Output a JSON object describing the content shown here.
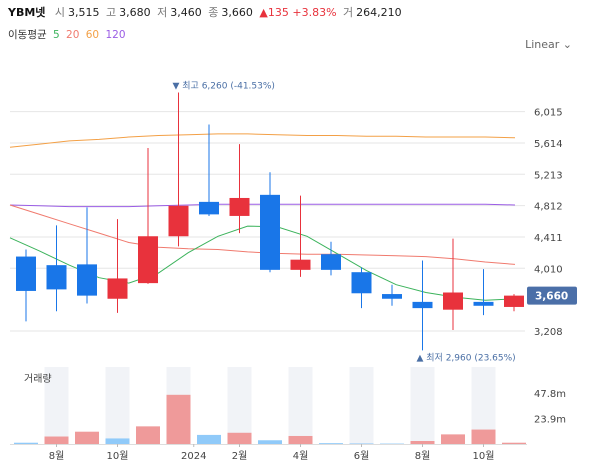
{
  "header": {
    "name": "YBM넷",
    "open_label": "시",
    "open": "3,515",
    "high_label": "고",
    "high": "3,680",
    "low_label": "저",
    "low": "3,460",
    "close_label": "종",
    "close": "3,660",
    "change": "▲135 +3.83%",
    "volume_label": "거",
    "volume": "264,210"
  },
  "ma_legend": {
    "title": "이동평균",
    "items": [
      {
        "label": "5",
        "color": "#3cb35c"
      },
      {
        "label": "20",
        "color": "#f07a6e"
      },
      {
        "label": "60",
        "color": "#f3a046"
      },
      {
        "label": "120",
        "color": "#9b5de5"
      }
    ]
  },
  "scale_label": "Linear",
  "colors": {
    "up": "#e8323c",
    "down": "#1976e8",
    "grid": "#e6e6e6",
    "vol_up": "#ef9a9a",
    "vol_down": "#90caf9"
  },
  "chart_data": {
    "type": "candlestick",
    "price_ticks": [
      "6,015",
      "5,614",
      "5,213",
      "4,812",
      "4,411",
      "4,010",
      "3,208"
    ],
    "price_tick_values": [
      6015,
      5614,
      5213,
      4812,
      4411,
      4010,
      3208
    ],
    "ylim": [
      2900,
      6420
    ],
    "last_price": {
      "label": "3,660",
      "value": 3660
    },
    "max_annotation": {
      "label": "▼ 최고 6,260 (-41.53%)",
      "value": 6260,
      "index": 5
    },
    "min_annotation": {
      "label": "▲ 최저 2,960 (23.65%)",
      "value": 2960,
      "index": 13
    },
    "x_labels": [
      {
        "label": "8월",
        "index": 1
      },
      {
        "label": "10월",
        "index": 3
      },
      {
        "label": "2024",
        "index": 5.5
      },
      {
        "label": "2월",
        "index": 7
      },
      {
        "label": "4월",
        "index": 9
      },
      {
        "label": "6월",
        "index": 11
      },
      {
        "label": "8월",
        "index": 13
      },
      {
        "label": "10월",
        "index": 15
      }
    ],
    "candles": [
      {
        "o": 4160,
        "h": 4250,
        "l": 3330,
        "c": 3720
      },
      {
        "o": 4050,
        "h": 4560,
        "l": 3460,
        "c": 3740
      },
      {
        "o": 4060,
        "h": 4790,
        "l": 3560,
        "c": 3660
      },
      {
        "o": 3620,
        "h": 4640,
        "l": 3440,
        "c": 3880
      },
      {
        "o": 3820,
        "h": 5550,
        "l": 3810,
        "c": 4420
      },
      {
        "o": 4420,
        "h": 6260,
        "l": 4290,
        "c": 4810
      },
      {
        "o": 4860,
        "h": 5850,
        "l": 4680,
        "c": 4700
      },
      {
        "o": 4680,
        "h": 5600,
        "l": 4460,
        "c": 4910
      },
      {
        "o": 4950,
        "h": 5240,
        "l": 3960,
        "c": 3990
      },
      {
        "o": 3990,
        "h": 4940,
        "l": 3900,
        "c": 4120
      },
      {
        "o": 4190,
        "h": 4350,
        "l": 3920,
        "c": 3990
      },
      {
        "o": 3960,
        "h": 4020,
        "l": 3500,
        "c": 3690
      },
      {
        "o": 3680,
        "h": 3800,
        "l": 3530,
        "c": 3620
      },
      {
        "o": 3580,
        "h": 4110,
        "l": 2960,
        "c": 3500
      },
      {
        "o": 3480,
        "h": 4390,
        "l": 3220,
        "c": 3700
      },
      {
        "o": 3580,
        "h": 4000,
        "l": 3410,
        "c": 3530
      },
      {
        "o": 3515,
        "h": 3680,
        "l": 3460,
        "c": 3660
      }
    ],
    "ma5": [
      4400,
      4230,
      4050,
      3890,
      3820,
      3950,
      4210,
      4420,
      4550,
      4540,
      4420,
      4200,
      3980,
      3800,
      3700,
      3640,
      3600,
      3620
    ],
    "ma20": [
      4820,
      4700,
      4580,
      4460,
      4340,
      4280,
      4260,
      4250,
      4220,
      4200,
      4190,
      4190,
      4180,
      4170,
      4160,
      4130,
      4090,
      4060
    ],
    "ma60": [
      5560,
      5600,
      5640,
      5660,
      5690,
      5710,
      5720,
      5730,
      5730,
      5720,
      5710,
      5710,
      5700,
      5700,
      5690,
      5690,
      5690,
      5680
    ],
    "ma120": [
      4820,
      4810,
      4800,
      4800,
      4800,
      4810,
      4820,
      4830,
      4830,
      4830,
      4830,
      4830,
      4830,
      4830,
      4830,
      4830,
      4830,
      4820
    ],
    "volume": {
      "title": "거래량",
      "ticks": [
        "47.8m",
        "23.9m"
      ],
      "tick_values": [
        47.8,
        23.9
      ],
      "max": 72,
      "values": [
        1.2,
        7.0,
        11.5,
        5.2,
        16.5,
        46.0,
        8.5,
        10.5,
        3.5,
        7.5,
        0.8,
        0.5,
        0.4,
        2.8,
        9.0,
        13.5,
        1.2
      ],
      "up": [
        false,
        true,
        true,
        false,
        true,
        true,
        false,
        true,
        false,
        true,
        false,
        false,
        false,
        true,
        true,
        true,
        true
      ]
    }
  }
}
